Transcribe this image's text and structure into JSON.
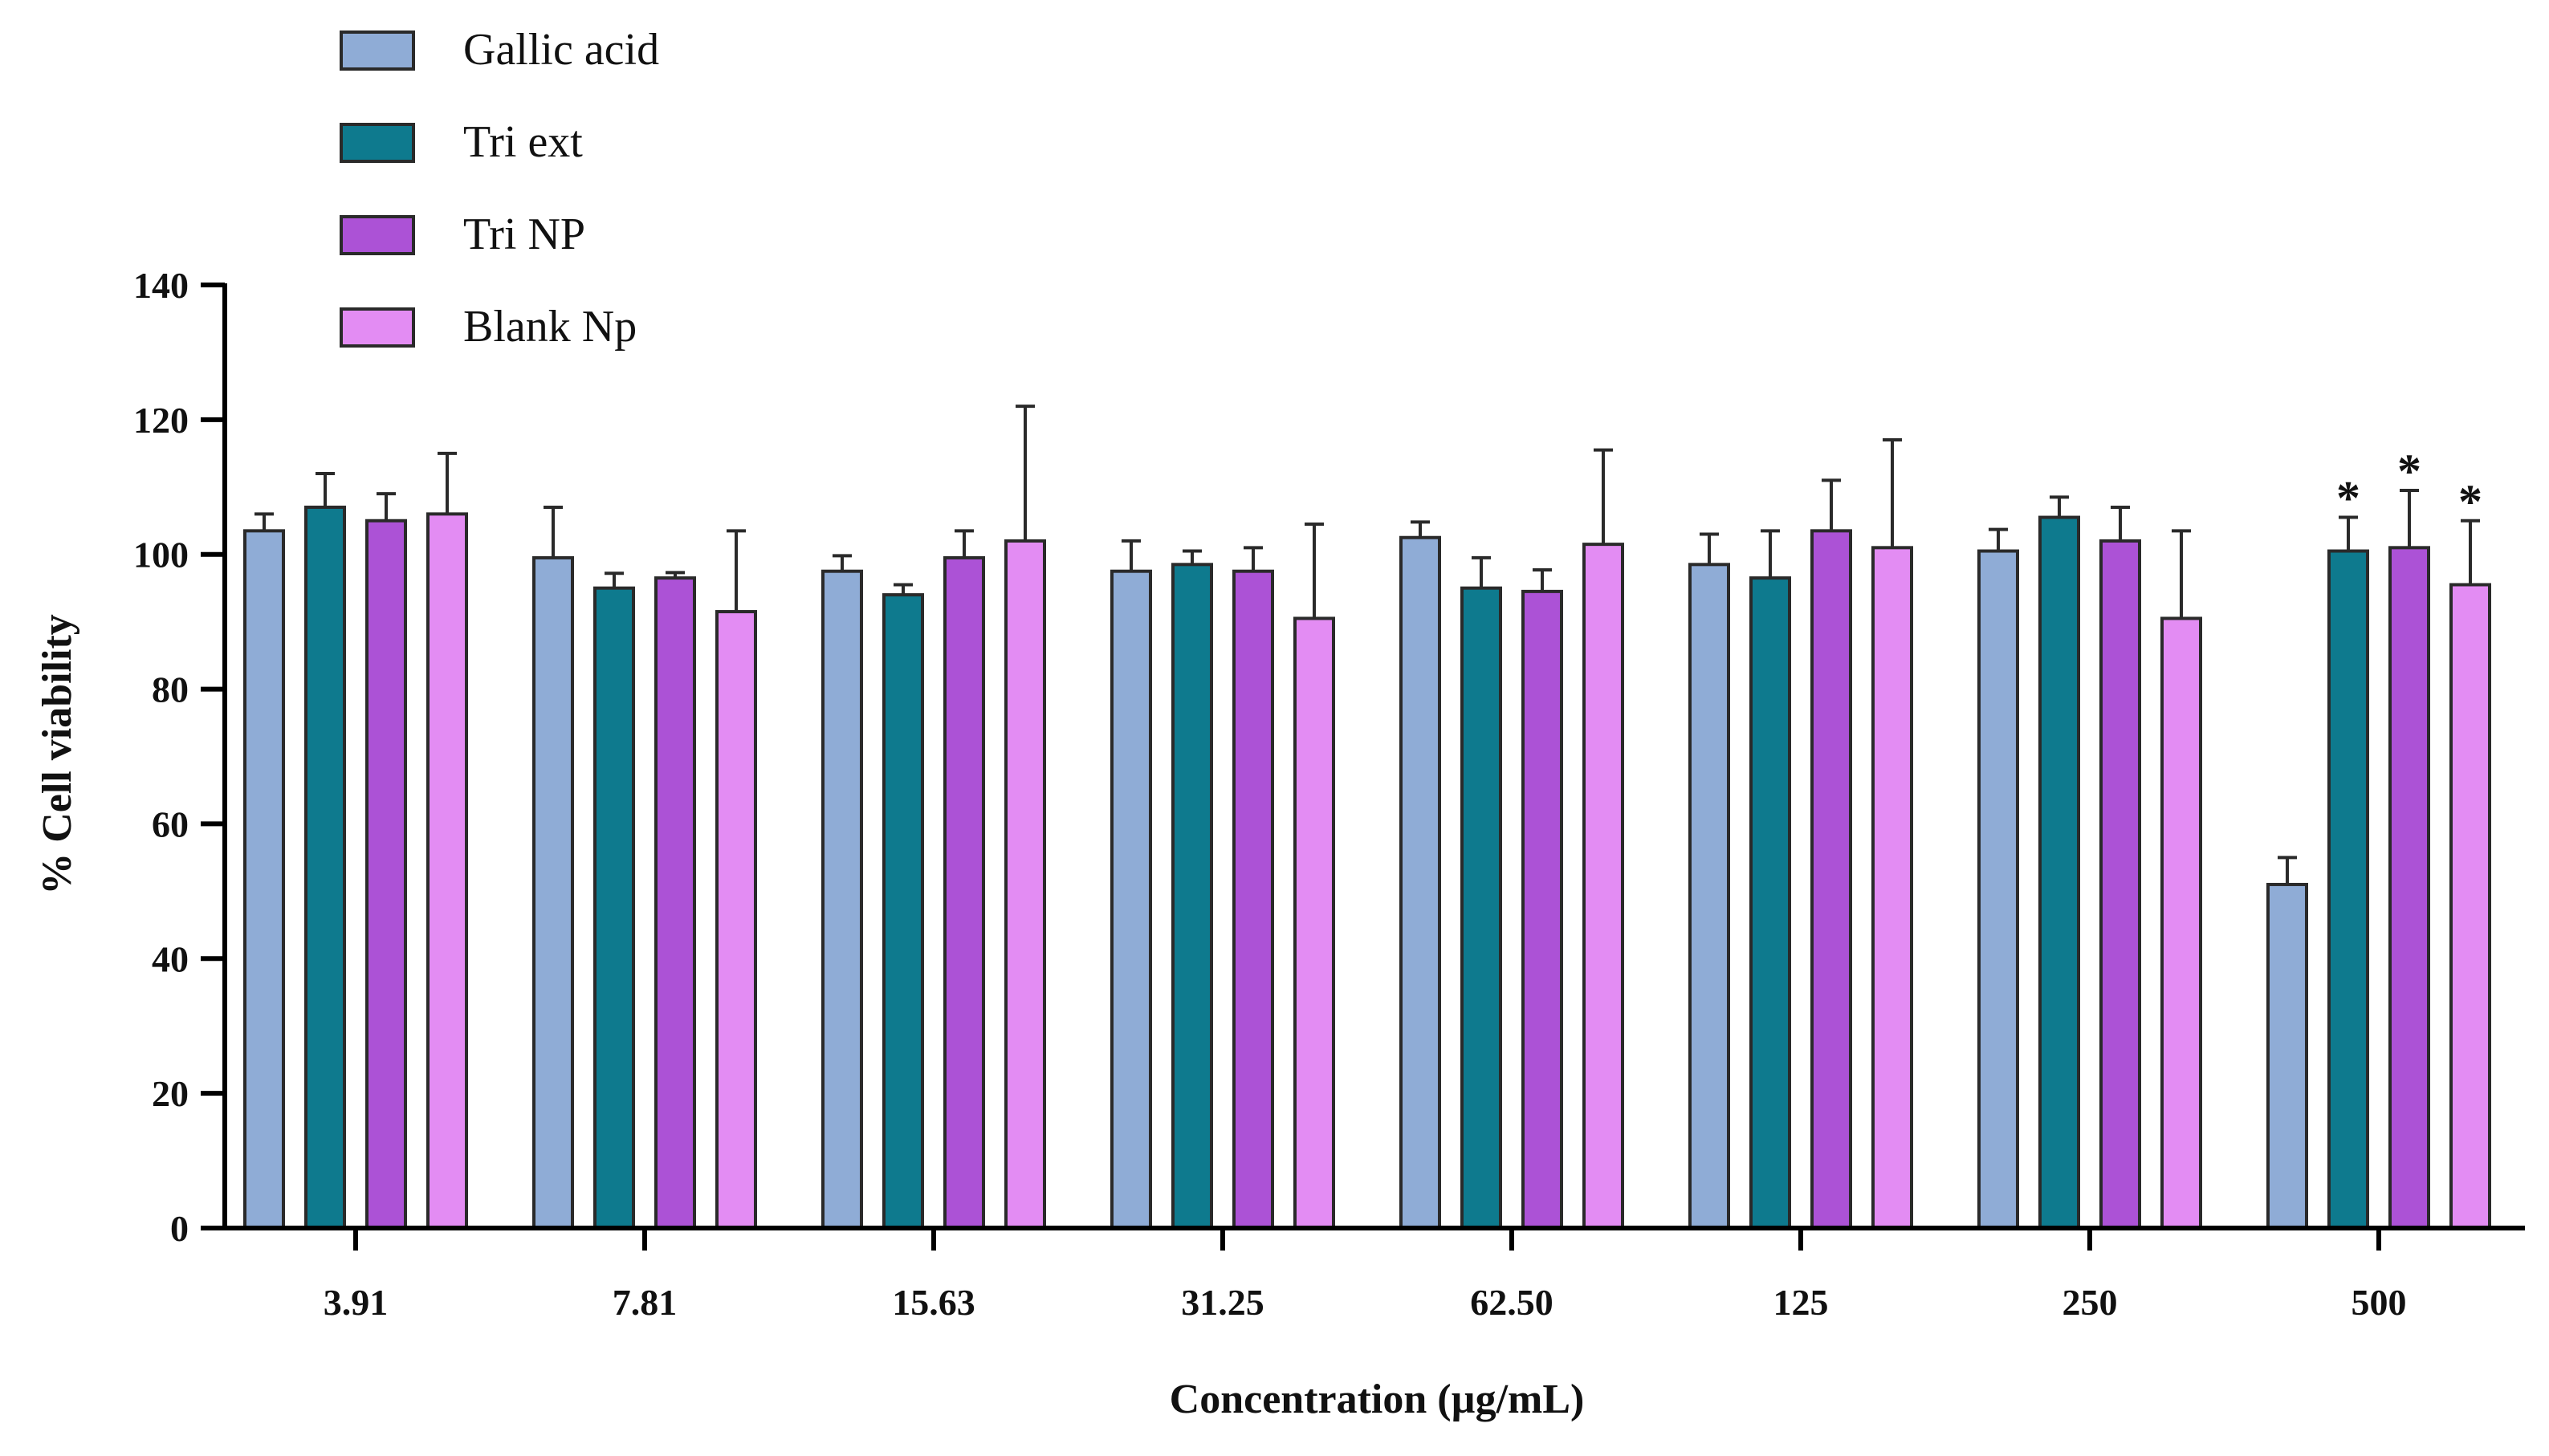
{
  "chart_data": {
    "type": "bar",
    "title": "",
    "xlabel": "Concentration (µg/mL)",
    "ylabel": "% Cell viability",
    "ylim": [
      0,
      140
    ],
    "yticks": [
      0,
      20,
      40,
      60,
      80,
      100,
      120,
      140
    ],
    "categories": [
      "3.91",
      "7.81",
      "15.63",
      "31.25",
      "62.50",
      "125",
      "250",
      "500"
    ],
    "series": [
      {
        "name": "Gallic acid",
        "color": "#8facd6",
        "values": [
          103.5,
          99.5,
          97.5,
          97.5,
          102.5,
          98.5,
          100.5,
          51.0
        ],
        "errors": [
          2.5,
          7.5,
          2.3,
          4.5,
          2.3,
          4.5,
          3.2,
          4.0
        ],
        "significance": [
          "",
          "",
          "",
          "",
          "",
          "",
          "",
          ""
        ]
      },
      {
        "name": "Tri ext",
        "color": "#0e7a8e",
        "values": [
          107.0,
          95.0,
          94.0,
          98.5,
          95.0,
          96.5,
          105.5,
          100.5
        ],
        "errors": [
          5.0,
          2.2,
          1.5,
          2.0,
          4.5,
          7.0,
          3.0,
          5.0
        ],
        "significance": [
          "",
          "",
          "",
          "",
          "",
          "",
          "",
          "*"
        ]
      },
      {
        "name": "Tri NP",
        "color": "#ac52d6",
        "values": [
          105.0,
          96.5,
          99.5,
          97.5,
          94.5,
          103.5,
          102.0,
          101.0
        ],
        "errors": [
          4.0,
          0.8,
          4.0,
          3.5,
          3.2,
          7.5,
          5.0,
          8.5
        ],
        "significance": [
          "",
          "",
          "",
          "",
          "",
          "",
          "",
          "*"
        ]
      },
      {
        "name": "Blank Np",
        "color": "#e38cf3",
        "values": [
          106.0,
          91.5,
          102.0,
          90.5,
          101.5,
          101.0,
          90.5,
          95.5
        ],
        "errors": [
          9.0,
          12.0,
          20.0,
          14.0,
          14.0,
          16.0,
          13.0,
          9.5
        ],
        "significance": [
          "",
          "",
          "",
          "",
          "",
          "",
          "",
          "*"
        ]
      }
    ],
    "legend_position": "top-left"
  }
}
